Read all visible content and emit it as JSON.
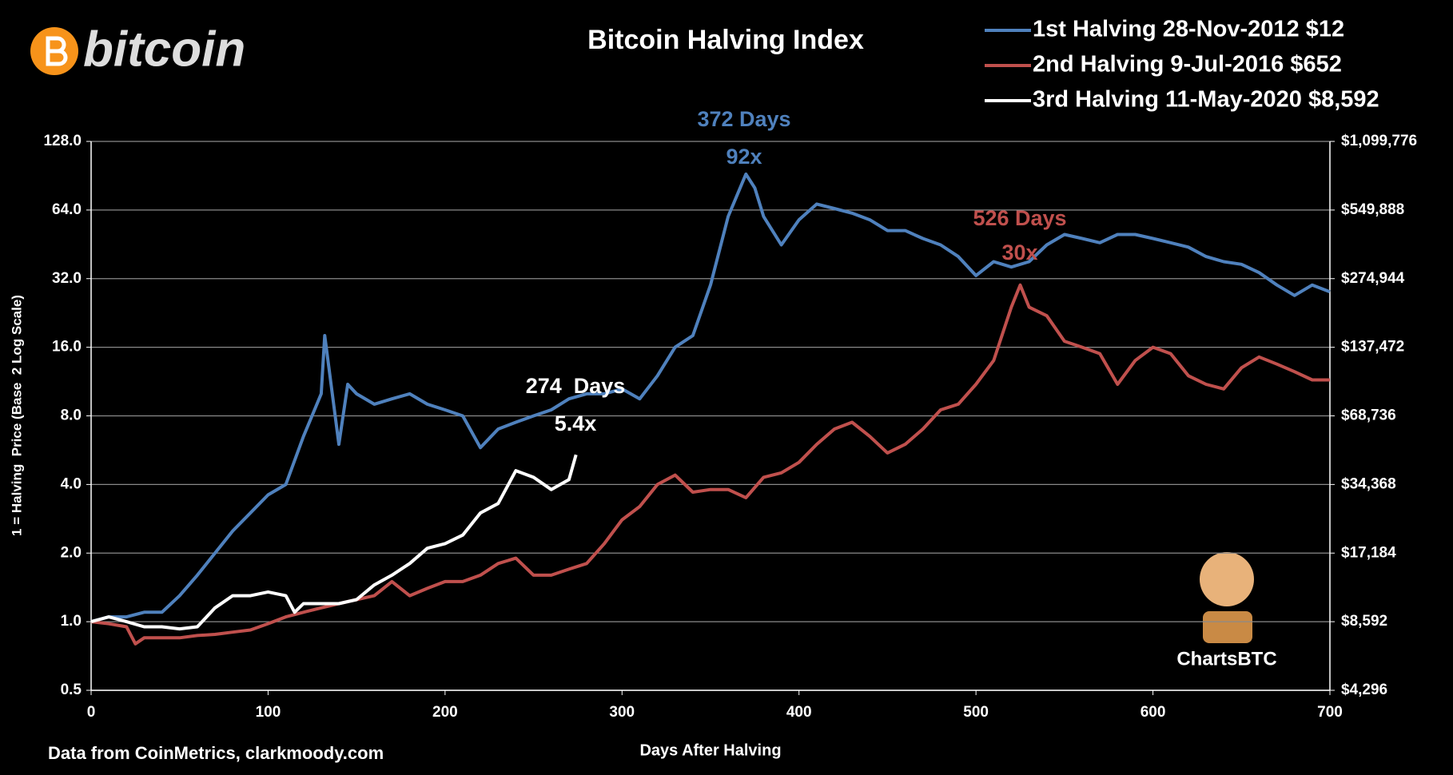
{
  "chart_data": {
    "type": "line",
    "title": "Bitcoin Halving Index",
    "logo": "bitcoin",
    "source": "Data from CoinMetrics, clarkmoody.com",
    "watermark": "ChartsBTC",
    "x_label": "Days After Halving",
    "y_label": "1 = Halving  Price (Base  2 Log Scale)",
    "y_scale": "log2",
    "y2_scale": "log2",
    "grid": true,
    "legend": "top-right",
    "xlim": [
      0,
      700
    ],
    "xticks": [
      0,
      100,
      200,
      300,
      400,
      500,
      600,
      700
    ],
    "ylim": [
      0.5,
      128
    ],
    "yticks": [
      0.5,
      {
        "value": 1,
        "label": "1.0"
      },
      {
        "value": 2,
        "label": "2.0"
      },
      {
        "value": 4,
        "label": "4.0"
      },
      {
        "value": 8,
        "label": "8.0"
      },
      {
        "value": 16,
        "label": "16.0"
      },
      {
        "value": 32,
        "label": "32.0"
      },
      {
        "value": 64,
        "label": "64.0"
      },
      {
        "value": 128,
        "label": "128.0"
      }
    ],
    "y2lim": [
      4296,
      1099776
    ],
    "y2ticks": [
      {
        "value": 4296,
        "label": "$4,296"
      },
      {
        "value": 8592,
        "label": "$8,592"
      },
      {
        "value": 17184,
        "label": "$17,184"
      },
      {
        "value": 34368,
        "label": "$34,368"
      },
      {
        "value": 68736,
        "label": "$68,736"
      },
      {
        "value": 137472,
        "label": "$137,472"
      },
      {
        "value": 274944,
        "label": "$274,944"
      },
      {
        "value": 549888,
        "label": "$549,888"
      },
      {
        "value": 1099776,
        "label": "$1,099,776"
      }
    ],
    "series": [
      {
        "name": "1st Halving 28-Nov-2012 $12",
        "color": "#4f81bd",
        "x": [
          0,
          10,
          20,
          30,
          40,
          50,
          60,
          70,
          80,
          90,
          100,
          110,
          120,
          130,
          132,
          140,
          145,
          150,
          160,
          170,
          180,
          190,
          200,
          210,
          220,
          230,
          240,
          250,
          260,
          270,
          280,
          290,
          300,
          310,
          320,
          330,
          340,
          350,
          360,
          370,
          375,
          380,
          390,
          400,
          410,
          420,
          430,
          440,
          450,
          460,
          470,
          480,
          490,
          500,
          510,
          520,
          530,
          540,
          550,
          560,
          570,
          580,
          590,
          600,
          610,
          620,
          630,
          640,
          650,
          660,
          670,
          680,
          690,
          700
        ],
        "values": [
          1.0,
          1.05,
          1.05,
          1.1,
          1.1,
          1.3,
          1.6,
          2.0,
          2.5,
          3.0,
          3.6,
          4.0,
          6.5,
          10,
          18,
          6,
          11,
          10,
          9,
          9.5,
          10,
          9,
          8.5,
          8,
          5.8,
          7,
          7.5,
          8,
          8.5,
          9.5,
          10,
          10,
          10.5,
          9.5,
          12,
          16,
          18,
          30,
          60,
          92,
          80,
          60,
          45,
          58,
          68,
          65,
          62,
          58,
          52,
          52,
          48,
          45,
          40,
          33,
          38,
          36,
          38,
          45,
          50,
          48,
          46,
          50,
          50,
          48,
          46,
          44,
          40,
          38,
          37,
          34,
          30,
          27,
          30,
          28
        ]
      },
      {
        "name": "2nd Halving 9-Jul-2016 $652",
        "color": "#c0504d",
        "x": [
          0,
          10,
          20,
          25,
          30,
          40,
          50,
          60,
          70,
          80,
          90,
          100,
          110,
          120,
          130,
          140,
          150,
          160,
          170,
          180,
          190,
          200,
          210,
          220,
          230,
          240,
          250,
          260,
          270,
          280,
          290,
          300,
          310,
          320,
          330,
          340,
          350,
          360,
          370,
          380,
          390,
          400,
          410,
          420,
          430,
          440,
          450,
          460,
          470,
          480,
          490,
          500,
          510,
          520,
          525,
          530,
          540,
          550,
          560,
          570,
          580,
          590,
          600,
          610,
          620,
          630,
          640,
          650,
          660,
          670,
          680,
          690,
          700
        ],
        "values": [
          1.0,
          0.98,
          0.95,
          0.8,
          0.85,
          0.85,
          0.85,
          0.87,
          0.88,
          0.9,
          0.92,
          0.98,
          1.05,
          1.1,
          1.15,
          1.2,
          1.25,
          1.3,
          1.5,
          1.3,
          1.4,
          1.5,
          1.5,
          1.6,
          1.8,
          1.9,
          1.6,
          1.6,
          1.7,
          1.8,
          2.2,
          2.8,
          3.2,
          4.0,
          4.4,
          3.7,
          3.8,
          3.8,
          3.5,
          4.3,
          4.5,
          5,
          6,
          7,
          7.5,
          6.5,
          5.5,
          6,
          7,
          8.5,
          9,
          11,
          14,
          24,
          30,
          24,
          22,
          17,
          16,
          15,
          11,
          14,
          16,
          15,
          12,
          11,
          10.5,
          13,
          14.5,
          13.5,
          12.5,
          11.5,
          11.5
        ]
      },
      {
        "name": "3rd Halving 11-May-2020 $8,592",
        "color": "#ffffff",
        "x": [
          0,
          10,
          20,
          30,
          40,
          50,
          60,
          70,
          80,
          90,
          100,
          110,
          115,
          120,
          130,
          140,
          150,
          160,
          170,
          180,
          190,
          200,
          210,
          220,
          230,
          240,
          250,
          260,
          270,
          274
        ],
        "values": [
          1.0,
          1.05,
          1.0,
          0.95,
          0.95,
          0.93,
          0.95,
          1.15,
          1.3,
          1.3,
          1.35,
          1.3,
          1.1,
          1.2,
          1.2,
          1.2,
          1.25,
          1.45,
          1.6,
          1.8,
          2.1,
          2.2,
          2.4,
          3.0,
          3.3,
          4.6,
          4.3,
          3.8,
          4.2,
          5.4
        ]
      }
    ],
    "annotations": [
      {
        "text": "372 Days",
        "color": "#4f81bd"
      },
      {
        "text": "92x",
        "color": "#4f81bd"
      },
      {
        "text": "526 Days",
        "color": "#c0504d"
      },
      {
        "text": "30x",
        "color": "#c0504d"
      },
      {
        "text": "274  Days",
        "color": "#ffffff"
      },
      {
        "text": "5.4x",
        "color": "#ffffff"
      }
    ]
  }
}
